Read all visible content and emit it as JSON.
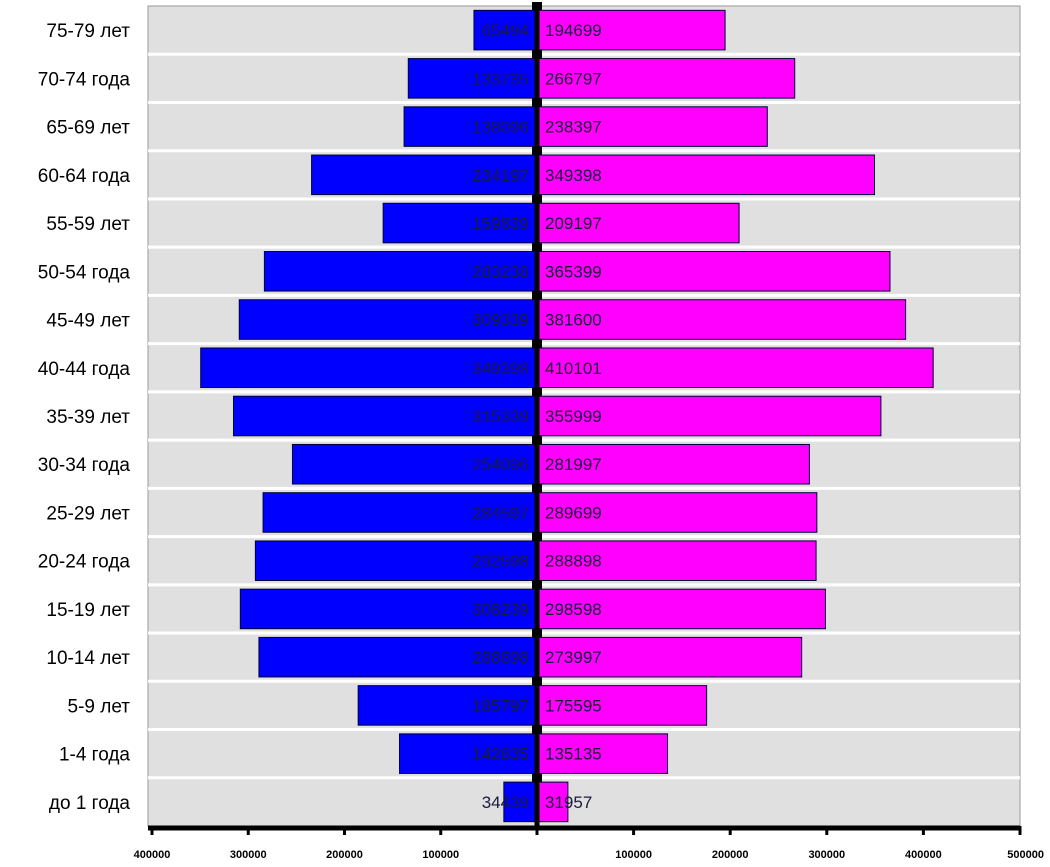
{
  "chart_data": {
    "type": "bar",
    "orientation": "horizontal",
    "layout": "population-pyramid",
    "categories": [
      "75-79 лет",
      "70-74 года",
      "65-69 лет",
      "60-64 года",
      "55-59 лет",
      "50-54 года",
      "45-49 лет",
      "40-44 года",
      "35-39 лет",
      "30-34 года",
      "25-29 лет",
      "20-24 года",
      "15-19 лет",
      "10-14 лет",
      "5-9 лет",
      "1-4 года",
      "до 1 года"
    ],
    "series": [
      {
        "side": "left",
        "color": "#0000ff",
        "values": [
          65494,
          133735,
          138096,
          234197,
          159839,
          283238,
          309339,
          349398,
          315339,
          254096,
          284597,
          292598,
          308239,
          288898,
          185797,
          142835,
          34439
        ],
        "data_labels": [
          "65494",
          "133735",
          "138096",
          "234197",
          "159839",
          "283238",
          "309339",
          "349398",
          "315339",
          "254096",
          "284597",
          "292598",
          "308239",
          "288898",
          "185797",
          "142835",
          "34439"
        ]
      },
      {
        "side": "right",
        "color": "#ff00ff",
        "values": [
          194699,
          266797,
          238397,
          349398,
          209197,
          365399,
          381600,
          410101,
          355999,
          281997,
          289699,
          288898,
          298598,
          273997,
          175595,
          135135,
          31957
        ],
        "data_labels": [
          "194699",
          "266797",
          "238397",
          "349398",
          "209197",
          "365399",
          "381600",
          "410101",
          "355999",
          "281997",
          "289699",
          "288898",
          "298598",
          "273997",
          "175595",
          "135135",
          "31957"
        ]
      }
    ],
    "xlim_left": [
      0,
      400000
    ],
    "xlim_right": [
      0,
      500000
    ],
    "x_ticks_left": [
      "400000",
      "300000",
      "200000",
      "100000"
    ],
    "x_ticks_right": [
      "100000",
      "200000",
      "300000",
      "400000",
      "500000"
    ],
    "title": "",
    "xlabel": "",
    "ylabel": "",
    "grid": true,
    "legend": "none",
    "colors": {
      "plot_background": "#e0e0e0",
      "separator": "#ffffff",
      "bar_outline": "#000033",
      "axis": "#000000"
    }
  }
}
